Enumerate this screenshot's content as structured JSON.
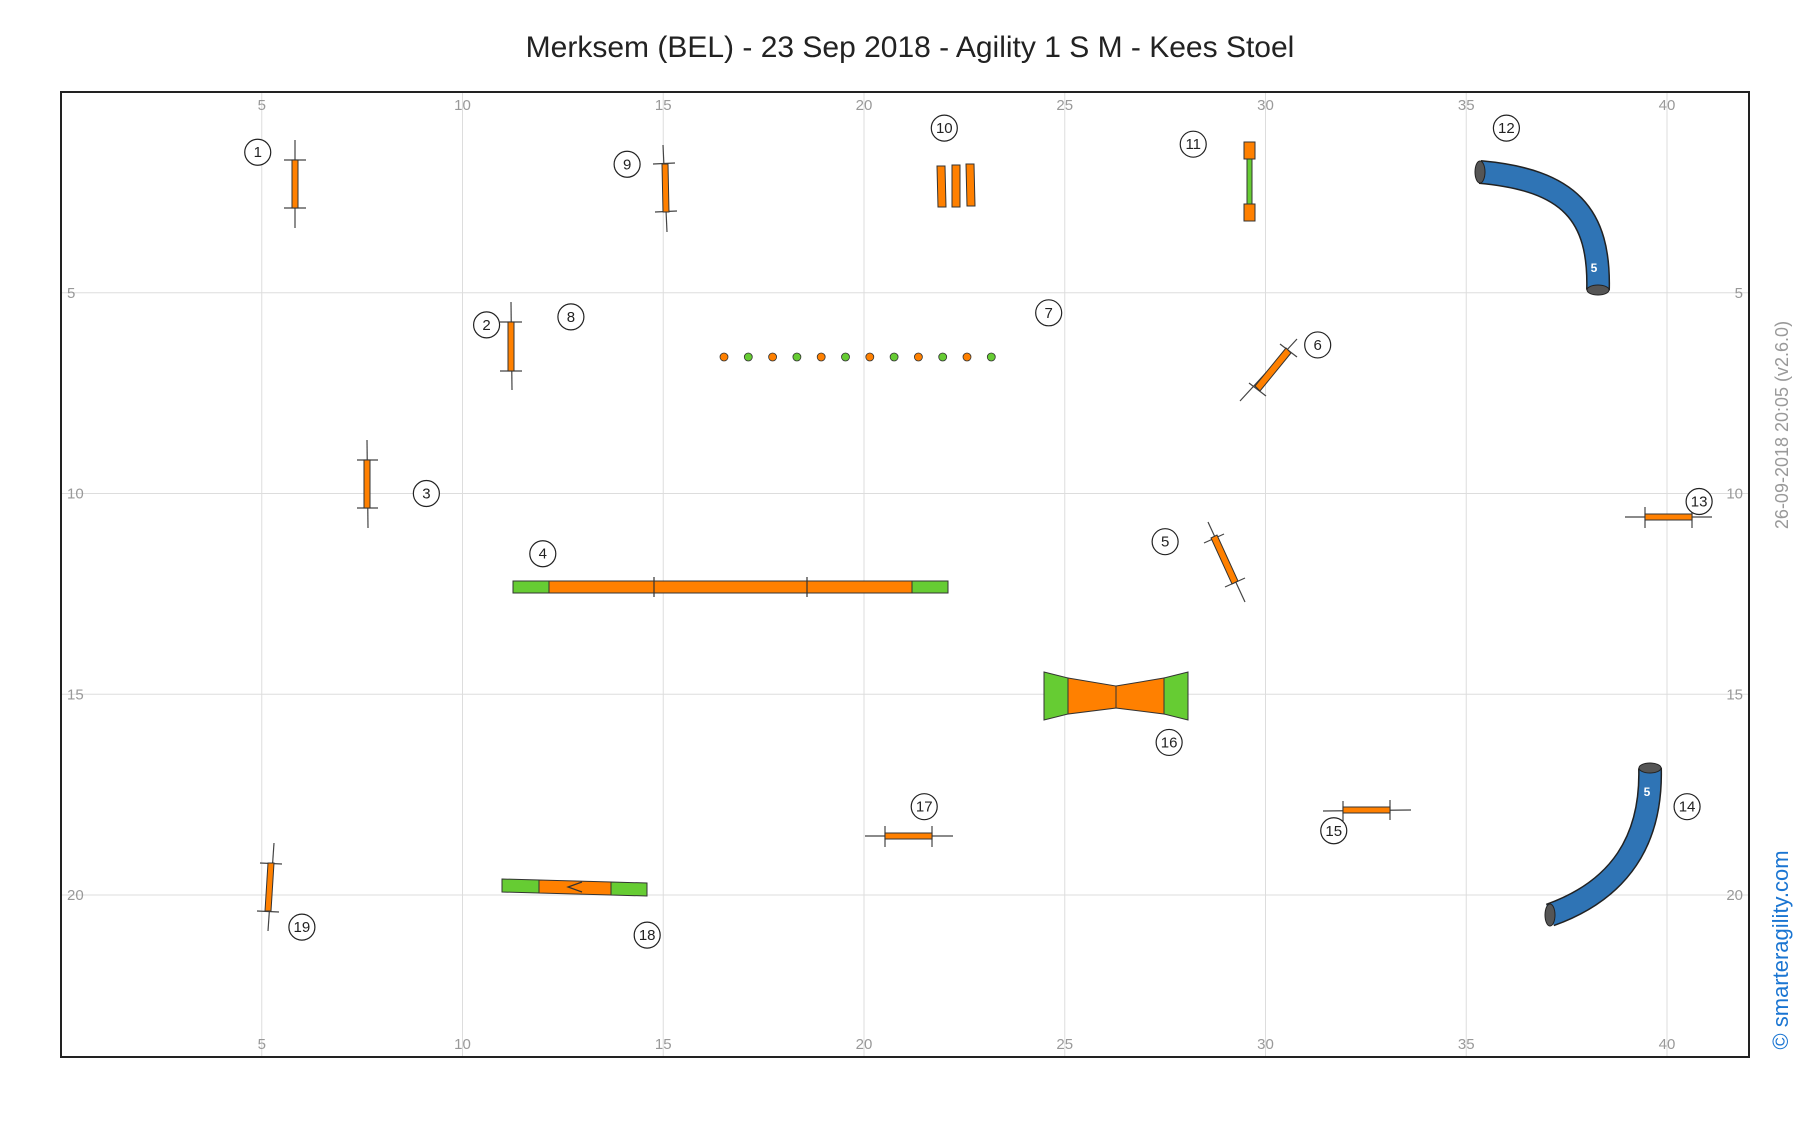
{
  "title": "Merksem (BEL) - 23 Sep 2018 - Agility 1 S M - Kees Stoel",
  "side_stamp": "26-09-2018 20:05   (v2.6.0)",
  "brand": "© smarteragility.com",
  "axes": {
    "x_ticks": [
      "5",
      "10",
      "15",
      "20",
      "25",
      "30",
      "35",
      "40"
    ],
    "y_ticks": [
      "5",
      "10",
      "15",
      "20"
    ]
  },
  "colors": {
    "orange": "#ff8000",
    "green": "#66cc33",
    "tunnel": "#2f74b5",
    "grid": "#dddddd"
  },
  "chart_data": {
    "type": "scatter",
    "x_range": [
      0,
      42
    ],
    "y_range": [
      0,
      24
    ],
    "obstacles": [
      {
        "n": "1",
        "type": "jump",
        "x": 5.8,
        "y": 2.4,
        "label_x": 4.9,
        "label_y": 1.5
      },
      {
        "n": "2",
        "type": "jump",
        "x": 11.2,
        "y": 6.3,
        "label_x": 10.6,
        "label_y": 5.8
      },
      {
        "n": "3",
        "type": "jump",
        "x": 7.6,
        "y": 10.1,
        "label_x": 9.1,
        "label_y": 10.0
      },
      {
        "n": "4",
        "type": "dogwalk",
        "x": 16.7,
        "y": 12.4,
        "label_x": 12.0,
        "label_y": 11.5
      },
      {
        "n": "5",
        "type": "jump",
        "x": 29.0,
        "y": 12.0,
        "label_x": 27.5,
        "label_y": 11.2
      },
      {
        "n": "6",
        "type": "jump",
        "x": 30.0,
        "y": 6.9,
        "label_x": 31.3,
        "label_y": 6.3
      },
      {
        "n": "7",
        "type": "weave",
        "x": 19.8,
        "y": 6.5,
        "label_x": 24.6,
        "label_y": 5.5
      },
      {
        "n": "8",
        "type": "weave",
        "x": 19.8,
        "y": 6.5,
        "label_x": 12.7,
        "label_y": 5.6
      },
      {
        "n": "9",
        "type": "jump",
        "x": 15.0,
        "y": 2.6,
        "label_x": 14.1,
        "label_y": 1.8
      },
      {
        "n": "10",
        "type": "long-jump",
        "x": 22.4,
        "y": 2.2,
        "label_x": 22.0,
        "label_y": 0.9
      },
      {
        "n": "11",
        "type": "tyre",
        "x": 29.5,
        "y": 2.3,
        "label_x": 28.2,
        "label_y": 1.3
      },
      {
        "n": "12",
        "type": "tunnel",
        "x": 36.7,
        "y": 3.2,
        "label_x": 36.0,
        "label_y": 0.9
      },
      {
        "n": "13",
        "type": "jump",
        "x": 40.0,
        "y": 10.6,
        "label_x": 40.8,
        "label_y": 10.2
      },
      {
        "n": "14",
        "type": "tunnel",
        "x": 38.5,
        "y": 18.9,
        "label_x": 40.5,
        "label_y": 17.8
      },
      {
        "n": "15",
        "type": "jump",
        "x": 32.4,
        "y": 18.0,
        "label_x": 31.7,
        "label_y": 18.4
      },
      {
        "n": "16",
        "type": "a-frame",
        "x": 26.3,
        "y": 15.0,
        "label_x": 27.6,
        "label_y": 16.2
      },
      {
        "n": "17",
        "type": "jump",
        "x": 21.1,
        "y": 18.5,
        "label_x": 21.5,
        "label_y": 17.8
      },
      {
        "n": "18",
        "type": "seesaw",
        "x": 12.8,
        "y": 19.8,
        "label_x": 14.6,
        "label_y": 21.0
      },
      {
        "n": "19",
        "type": "jump",
        "x": 5.2,
        "y": 20.2,
        "label_x": 6.0,
        "label_y": 20.8
      }
    ],
    "tunnel_marks": [
      "5",
      "5"
    ]
  }
}
